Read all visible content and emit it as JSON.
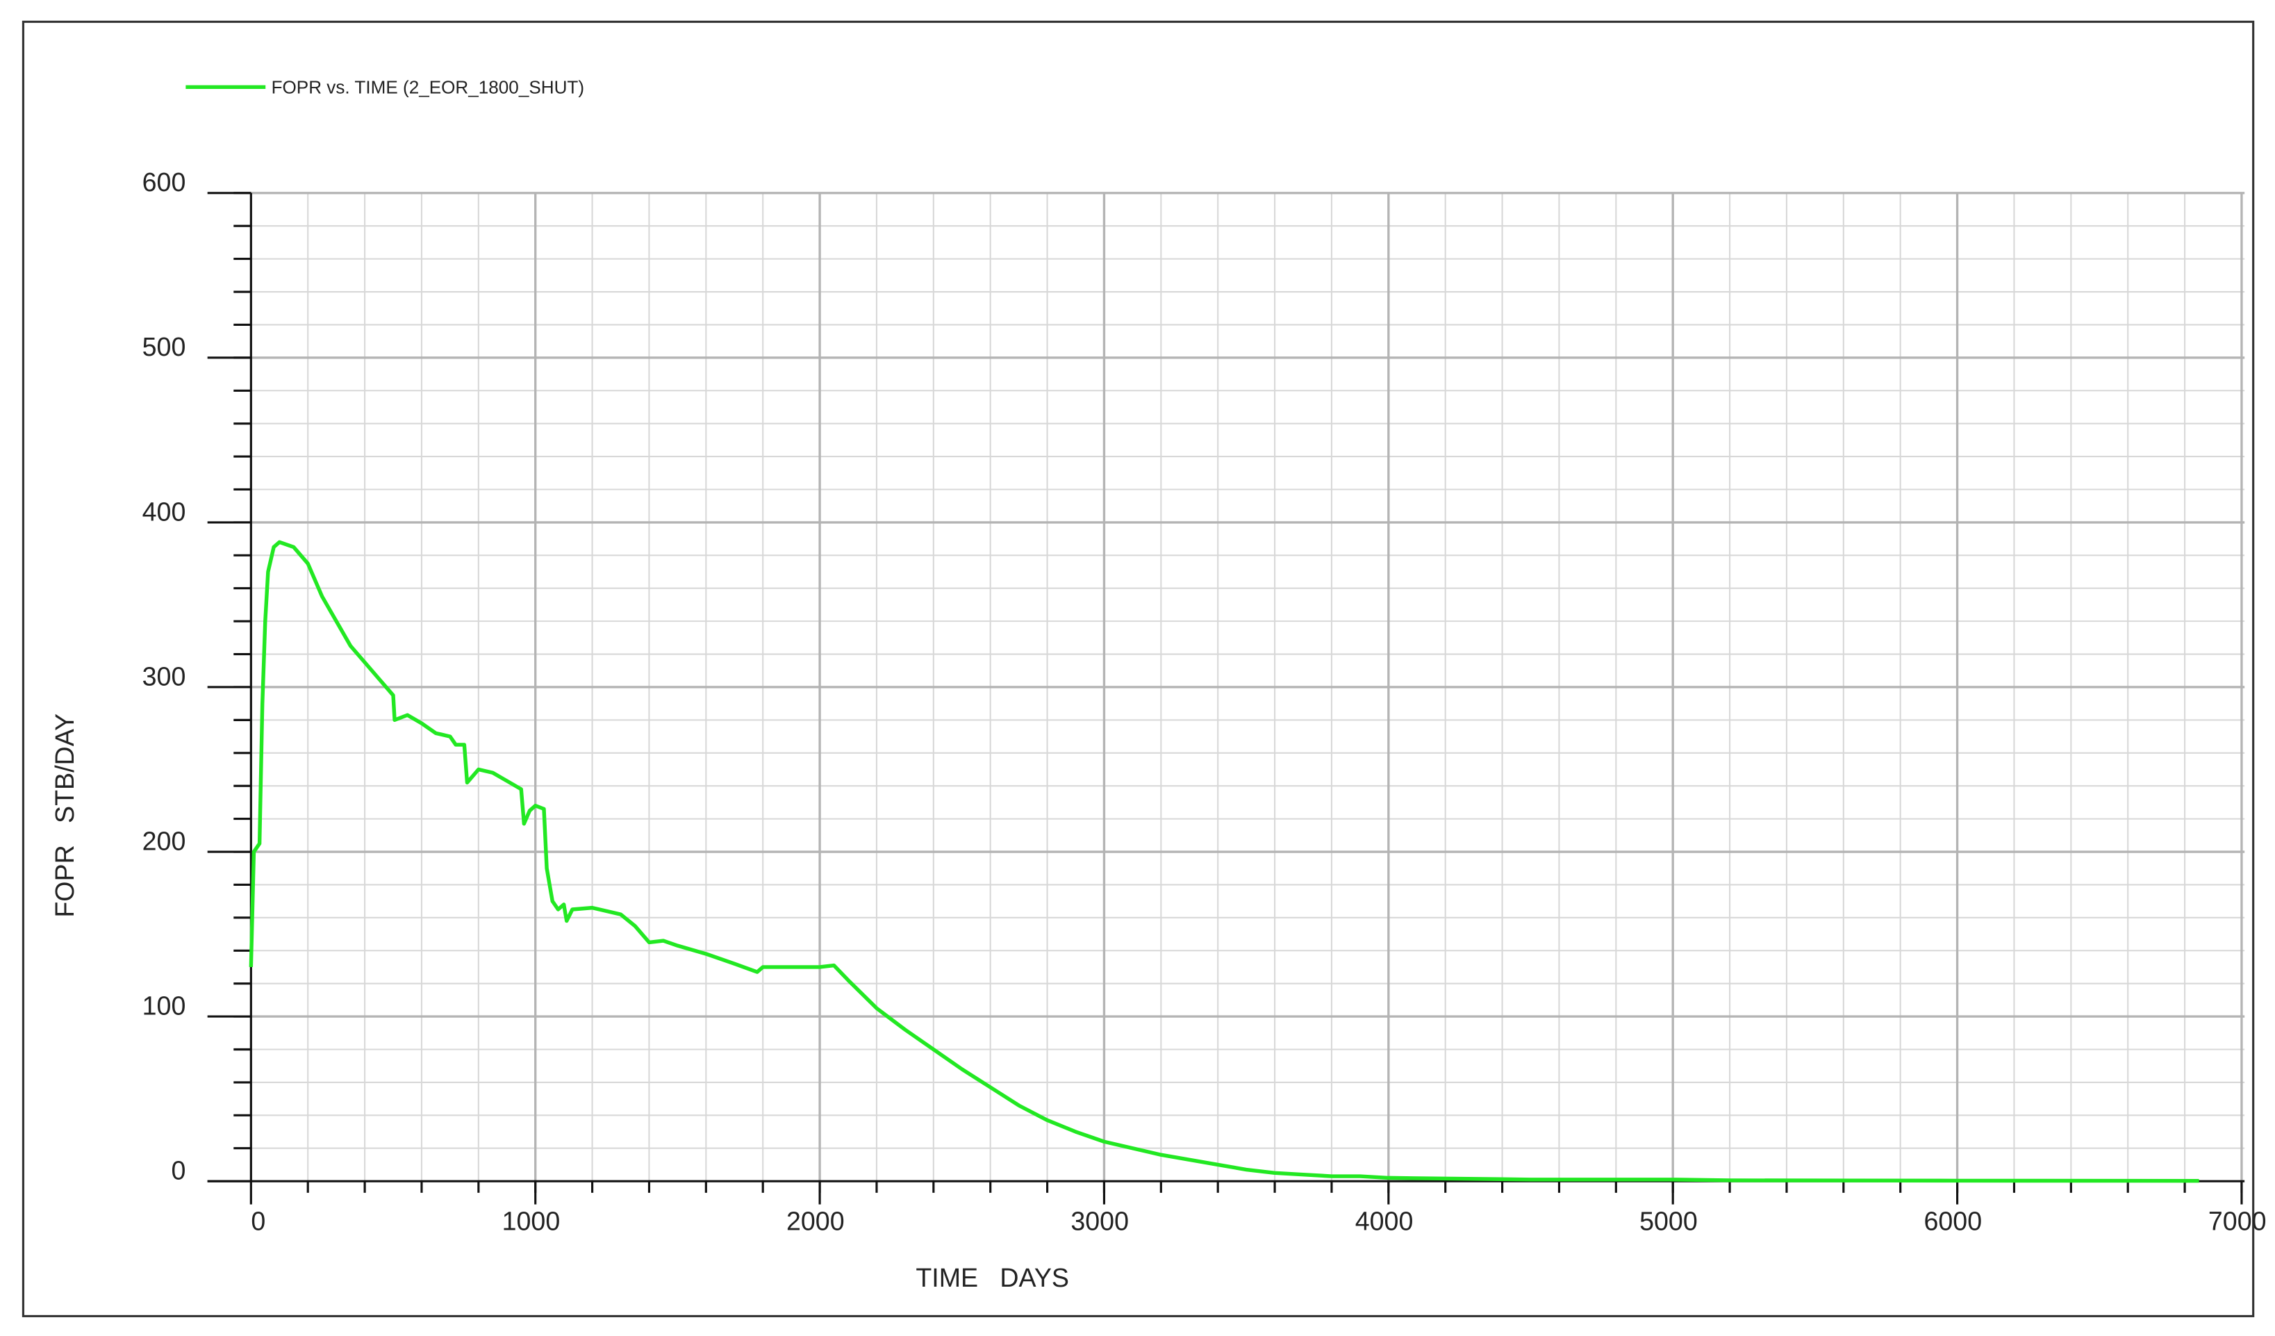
{
  "chart_data": {
    "type": "line",
    "xlabel": "TIME   DAYS",
    "ylabel": "FOPR   STB/DAY",
    "xlim": [
      0,
      7000
    ],
    "ylim": [
      0,
      600
    ],
    "xticks": [
      0,
      1000,
      2000,
      3000,
      4000,
      5000,
      6000,
      7000
    ],
    "yticks": [
      0,
      100,
      200,
      300,
      400,
      500,
      600
    ],
    "x_minor_step": 200,
    "y_minor_step": 20,
    "grid": true,
    "legend": "top-left",
    "series": [
      {
        "name": "FOPR vs. TIME (2_EOR_1800_SHUT)",
        "color": "#22e822",
        "x": [
          0,
          10,
          30,
          40,
          50,
          60,
          80,
          100,
          150,
          200,
          250,
          300,
          350,
          400,
          450,
          500,
          505,
          550,
          600,
          650,
          700,
          720,
          750,
          760,
          800,
          850,
          900,
          950,
          960,
          980,
          1000,
          1030,
          1040,
          1060,
          1080,
          1100,
          1110,
          1130,
          1200,
          1300,
          1350,
          1400,
          1450,
          1500,
          1600,
          1700,
          1780,
          1800,
          1900,
          2000,
          2050,
          2100,
          2200,
          2300,
          2400,
          2500,
          2600,
          2700,
          2800,
          2900,
          3000,
          3100,
          3200,
          3300,
          3400,
          3500,
          3600,
          3700,
          3800,
          3900,
          4000,
          4500,
          5000,
          5200,
          6000,
          6850
        ],
        "values": [
          130,
          200,
          205,
          290,
          340,
          370,
          385,
          388,
          385,
          375,
          355,
          340,
          325,
          315,
          305,
          295,
          280,
          283,
          278,
          272,
          270,
          265,
          265,
          242,
          250,
          248,
          243,
          238,
          217,
          225,
          228,
          226,
          190,
          170,
          165,
          168,
          158,
          165,
          166,
          162,
          155,
          145,
          146,
          143,
          138,
          132,
          127,
          130,
          130,
          130,
          131,
          122,
          105,
          92,
          80,
          68,
          57,
          46,
          37,
          30,
          24,
          20,
          16,
          13,
          10,
          7,
          5,
          4,
          3,
          3,
          2,
          1,
          1,
          0.5,
          0.3,
          0.2
        ]
      }
    ]
  }
}
